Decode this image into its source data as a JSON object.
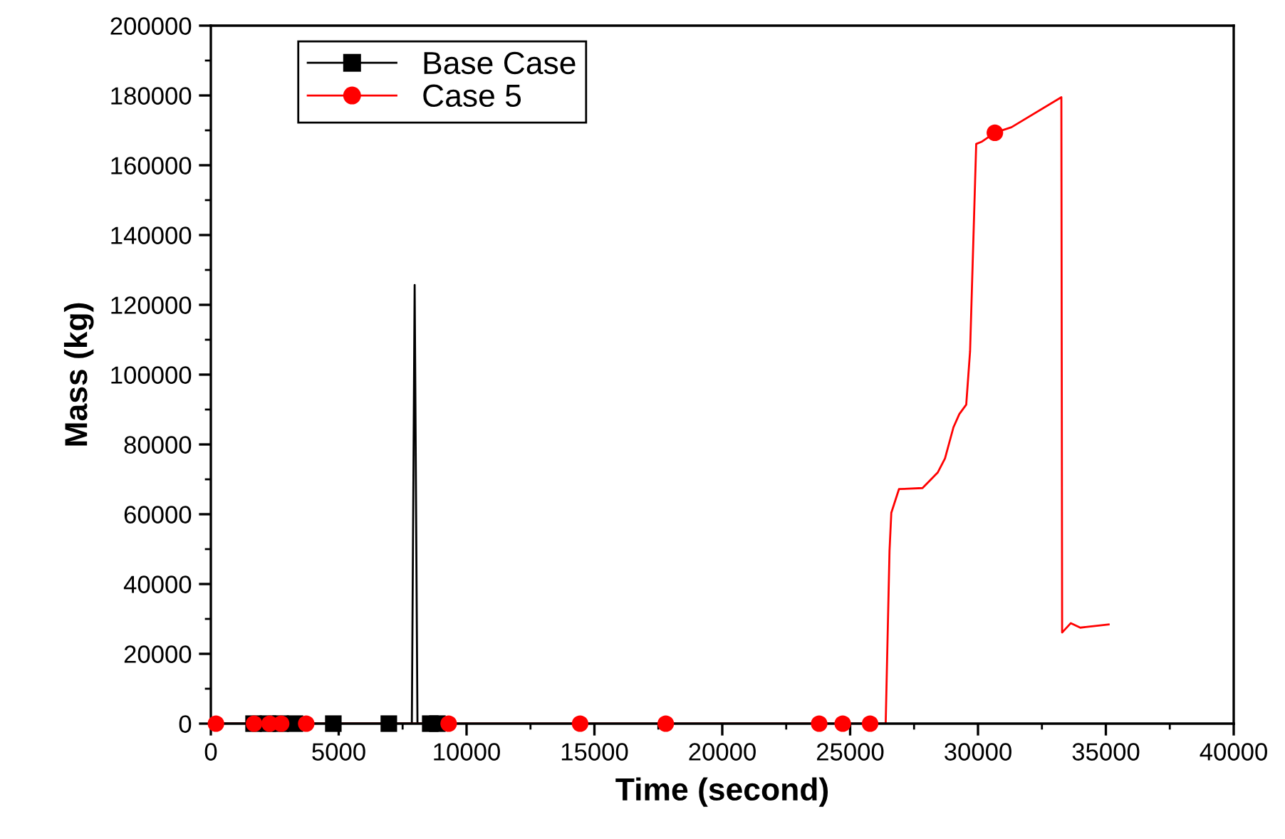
{
  "chart_data": {
    "type": "line",
    "xlabel": "Time (second)",
    "ylabel": "Mass (kg)",
    "xlim": [
      0,
      40000
    ],
    "xticks": [
      0,
      5000,
      10000,
      15000,
      20000,
      25000,
      30000,
      35000,
      40000
    ],
    "ylim": [
      0,
      200000
    ],
    "yticks": [
      0,
      20000,
      40000,
      60000,
      80000,
      100000,
      120000,
      140000,
      160000,
      180000,
      200000
    ],
    "grid": false,
    "legend": "top left",
    "series": [
      {
        "name": "Base Case",
        "color": "#000000",
        "x": [
          0,
          1670,
          2230,
          2730,
          3290,
          4790,
          6960,
          7860,
          7970,
          8080,
          8580,
          8860,
          9000
        ],
        "values": [
          0,
          0,
          0,
          0,
          0,
          0,
          0,
          0,
          125700,
          0,
          0,
          0,
          0
        ]
      },
      {
        "type": "scatter",
        "color": "#000000",
        "marker": "square",
        "x": [
          1670,
          2230,
          2730,
          3290,
          4790,
          6960,
          8580,
          8860
        ],
        "values": [
          0,
          0,
          0,
          0,
          0,
          0,
          0,
          0
        ]
      },
      {
        "name": "Case 5",
        "color": "#ff0000",
        "x": [
          0,
          200,
          1690,
          2300,
          2750,
          3730,
          9300,
          14440,
          17790,
          23790,
          24710,
          25780,
          26390,
          26540,
          26610,
          26910,
          27830,
          28430,
          28710,
          29040,
          29270,
          29540,
          29690,
          29930,
          30160,
          30660,
          31310,
          33260,
          33290,
          33630,
          34000,
          35110
        ],
        "values": [
          0,
          0,
          0,
          0,
          0,
          0,
          0,
          0,
          0,
          0,
          0,
          0,
          0,
          49500,
          60400,
          67200,
          67500,
          72000,
          76000,
          84900,
          88700,
          91400,
          106700,
          166100,
          166800,
          169300,
          170900,
          179500,
          26100,
          28800,
          27500,
          28400
        ]
      },
      {
        "type": "scatter",
        "color": "#ff0000",
        "marker": "circle",
        "x": [
          200,
          1690,
          2300,
          2750,
          3730,
          9300,
          14440,
          17790,
          23790,
          24710,
          25780,
          30660
        ],
        "values": [
          0,
          0,
          0,
          0,
          0,
          0,
          0,
          0,
          0,
          0,
          0,
          169300
        ]
      }
    ]
  }
}
